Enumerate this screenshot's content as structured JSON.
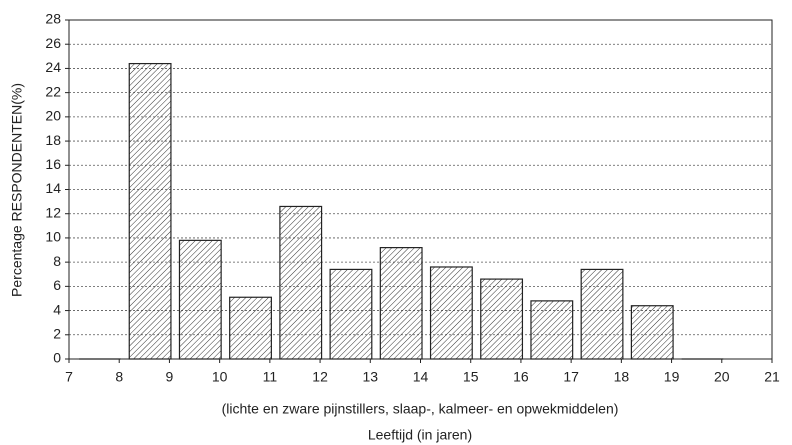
{
  "chart_data": {
    "type": "histogram",
    "bins": [
      7,
      8,
      9,
      10,
      11,
      12,
      13,
      14,
      15,
      16,
      17,
      18,
      19,
      20
    ],
    "values": [
      0,
      24.4,
      9.8,
      5.1,
      12.6,
      7.4,
      9.2,
      7.6,
      6.6,
      4.8,
      7.4,
      4.4,
      0
    ],
    "xlim": [
      7,
      21
    ],
    "xticks": [
      7,
      8,
      9,
      10,
      11,
      12,
      13,
      14,
      15,
      16,
      17,
      18,
      19,
      20,
      21
    ],
    "ylim": [
      0,
      28
    ],
    "yticks": [
      0,
      2,
      4,
      6,
      8,
      10,
      12,
      14,
      16,
      18,
      20,
      22,
      24,
      26,
      28
    ],
    "ylabel": "Percentage RESPONDENTEN(%)",
    "subtitle": "(lichte en zware pijnstillers, slaap-, kalmeer- en opwekmiddelen)",
    "xlabel": "Leeftijd (in jaren)",
    "grid": true,
    "color": "#222222"
  }
}
